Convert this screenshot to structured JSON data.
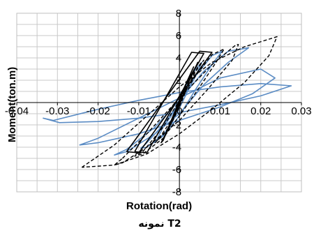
{
  "chart_data": {
    "type": "line",
    "title": "",
    "caption": "نمونه T2",
    "xlabel": "Rotation(rad)",
    "ylabel": "Moment(ton.m)",
    "xlim": [
      -0.04,
      0.03
    ],
    "ylim": [
      -8,
      8
    ],
    "x_ticks": [
      -0.04,
      -0.03,
      -0.02,
      -0.01,
      0,
      0.01,
      0.02,
      0.03
    ],
    "x_tick_labels": [
      "-0.04",
      "-0.03",
      "-0.02",
      "-0.01",
      "0",
      "0.01",
      "0.02",
      "0.03"
    ],
    "y_ticks": [
      -8,
      -6,
      -4,
      -2,
      0,
      2,
      4,
      6,
      8
    ],
    "y_tick_labels": [
      "-8",
      "-6",
      "-4",
      "-2",
      "0",
      "2",
      "4",
      "6",
      "8"
    ],
    "grid": true,
    "legend": "none",
    "colors": {
      "experimental": "#5b8cc4",
      "analytical": "#000000"
    },
    "series": [
      {
        "style": "solid",
        "color": "#5b8cc4",
        "loops": [
          [
            [
              -0.004,
              -2.2
            ],
            [
              -0.002,
              -1.2
            ],
            [
              0,
              0.2
            ],
            [
              0.002,
              1.8
            ],
            [
              0.004,
              3.0
            ],
            [
              0.0055,
              3.6
            ],
            [
              0.004,
              2.4
            ],
            [
              0.002,
              1.0
            ],
            [
              0,
              -0.5
            ],
            [
              -0.002,
              -1.9
            ],
            [
              -0.004,
              -2.9
            ],
            [
              -0.0055,
              -3.3
            ],
            [
              -0.004,
              -2.2
            ]
          ],
          [
            [
              -0.008,
              -3.6
            ],
            [
              -0.004,
              -2.0
            ],
            [
              0,
              0.0
            ],
            [
              0.004,
              2.4
            ],
            [
              0.008,
              4.2
            ],
            [
              0.0105,
              4.6
            ],
            [
              0.008,
              3.4
            ],
            [
              0.004,
              1.2
            ],
            [
              0,
              -1.2
            ],
            [
              -0.004,
              -3.0
            ],
            [
              -0.008,
              -4.0
            ],
            [
              -0.0095,
              -4.1
            ],
            [
              -0.008,
              -3.6
            ]
          ],
          [
            [
              -0.013,
              -4.2
            ],
            [
              -0.006,
              -2.2
            ],
            [
              0,
              0.2
            ],
            [
              0.006,
              2.8
            ],
            [
              0.012,
              4.6
            ],
            [
              0.017,
              4.9
            ],
            [
              0.012,
              3.6
            ],
            [
              0.006,
              1.6
            ],
            [
              0,
              -1.0
            ],
            [
              -0.006,
              -2.8
            ],
            [
              -0.013,
              -4.4
            ],
            [
              -0.016,
              -4.7
            ],
            [
              -0.013,
              -4.2
            ]
          ],
          [
            [
              -0.02,
              -3.2
            ],
            [
              -0.01,
              -1.4
            ],
            [
              0,
              0.4
            ],
            [
              0.01,
              2.2
            ],
            [
              0.02,
              3.0
            ],
            [
              0.0235,
              2.2
            ],
            [
              0.018,
              0.8
            ],
            [
              0.01,
              -0.4
            ],
            [
              0,
              -1.6
            ],
            [
              -0.01,
              -2.8
            ],
            [
              -0.02,
              -3.6
            ],
            [
              -0.0245,
              -3.8
            ],
            [
              -0.02,
              -3.2
            ]
          ],
          [
            [
              -0.031,
              -1.6
            ],
            [
              -0.02,
              -0.6
            ],
            [
              -0.01,
              0.2
            ],
            [
              0,
              0.9
            ],
            [
              0.01,
              1.4
            ],
            [
              0.02,
              1.7
            ],
            [
              0.0275,
              1.5
            ],
            [
              0.02,
              0.6
            ],
            [
              0.01,
              -0.2
            ],
            [
              0,
              -0.9
            ],
            [
              -0.01,
              -1.4
            ],
            [
              -0.02,
              -1.7
            ],
            [
              -0.0295,
              -1.8
            ],
            [
              -0.0335,
              -1.4
            ],
            [
              -0.031,
              -1.6
            ]
          ]
        ]
      },
      {
        "style": "dashed",
        "color": "#000000",
        "loops": [
          [
            [
              -0.005,
              -3.2
            ],
            [
              -0.002,
              -1.6
            ],
            [
              0,
              0.0
            ],
            [
              0.002,
              1.8
            ],
            [
              0.005,
              3.4
            ],
            [
              0.006,
              3.8
            ],
            [
              0.004,
              2.8
            ],
            [
              0.002,
              1.4
            ],
            [
              0,
              -0.4
            ],
            [
              -0.002,
              -1.9
            ],
            [
              -0.004,
              -2.9
            ],
            [
              -0.006,
              -3.6
            ],
            [
              -0.005,
              -3.2
            ]
          ],
          [
            [
              -0.009,
              -4.4
            ],
            [
              -0.004,
              -2.2
            ],
            [
              0,
              0.2
            ],
            [
              0.004,
              2.4
            ],
            [
              0.008,
              4.3
            ],
            [
              0.011,
              4.8
            ],
            [
              0.009,
              3.6
            ],
            [
              0.005,
              1.4
            ],
            [
              0,
              -1.2
            ],
            [
              -0.004,
              -3.2
            ],
            [
              -0.009,
              -4.6
            ],
            [
              -0.011,
              -4.8
            ],
            [
              -0.009,
              -4.4
            ]
          ],
          [
            [
              -0.014,
              -5.0
            ],
            [
              -0.008,
              -2.8
            ],
            [
              0,
              0.4
            ],
            [
              0.008,
              3.4
            ],
            [
              0.014,
              5.2
            ],
            [
              0.0145,
              5.2
            ],
            [
              0.013,
              3.8
            ],
            [
              0.007,
              1.2
            ],
            [
              0,
              -1.6
            ],
            [
              -0.008,
              -4.0
            ],
            [
              -0.014,
              -5.4
            ],
            [
              -0.016,
              -5.6
            ],
            [
              -0.014,
              -5.0
            ]
          ],
          [
            [
              -0.024,
              -5.8
            ],
            [
              -0.016,
              -3.8
            ],
            [
              -0.008,
              -1.2
            ],
            [
              0,
              1.4
            ],
            [
              0.008,
              3.6
            ],
            [
              0.016,
              5.0
            ],
            [
              0.024,
              5.9
            ],
            [
              0.022,
              4.2
            ],
            [
              0.016,
              1.8
            ],
            [
              0.008,
              -0.6
            ],
            [
              0,
              -2.8
            ],
            [
              -0.008,
              -4.6
            ],
            [
              -0.016,
              -5.6
            ],
            [
              -0.024,
              -5.8
            ]
          ]
        ]
      },
      {
        "style": "solid",
        "color": "#000000",
        "loops": [
          [
            [
              -0.003,
              -2.6
            ],
            [
              -0.001,
              -1.0
            ],
            [
              0.001,
              1.2
            ],
            [
              0.003,
              2.8
            ],
            [
              0.0035,
              3.2
            ],
            [
              0.002,
              2.0
            ],
            [
              0,
              0.2
            ],
            [
              -0.002,
              -1.6
            ],
            [
              -0.0035,
              -2.9
            ],
            [
              -0.003,
              -2.6
            ]
          ],
          [
            [
              -0.004,
              -3.4
            ],
            [
              -0.0015,
              -1.2
            ],
            [
              0.0015,
              1.6
            ],
            [
              0.004,
              3.2
            ],
            [
              0.0045,
              3.6
            ],
            [
              0.0025,
              2.0
            ],
            [
              0,
              -0.2
            ],
            [
              -0.0025,
              -2.2
            ],
            [
              -0.0045,
              -3.6
            ],
            [
              -0.004,
              -3.4
            ]
          ],
          [
            [
              -0.011,
              -4.4
            ],
            [
              -0.008,
              -4.5
            ],
            [
              0.006,
              4.4
            ],
            [
              0.003,
              4.5
            ],
            [
              -0.011,
              -4.4
            ]
          ],
          [
            [
              -0.013,
              -4.4
            ],
            [
              -0.01,
              -4.5
            ],
            [
              0.008,
              4.5
            ],
            [
              0.005,
              4.6
            ],
            [
              -0.013,
              -4.4
            ]
          ]
        ]
      }
    ]
  }
}
